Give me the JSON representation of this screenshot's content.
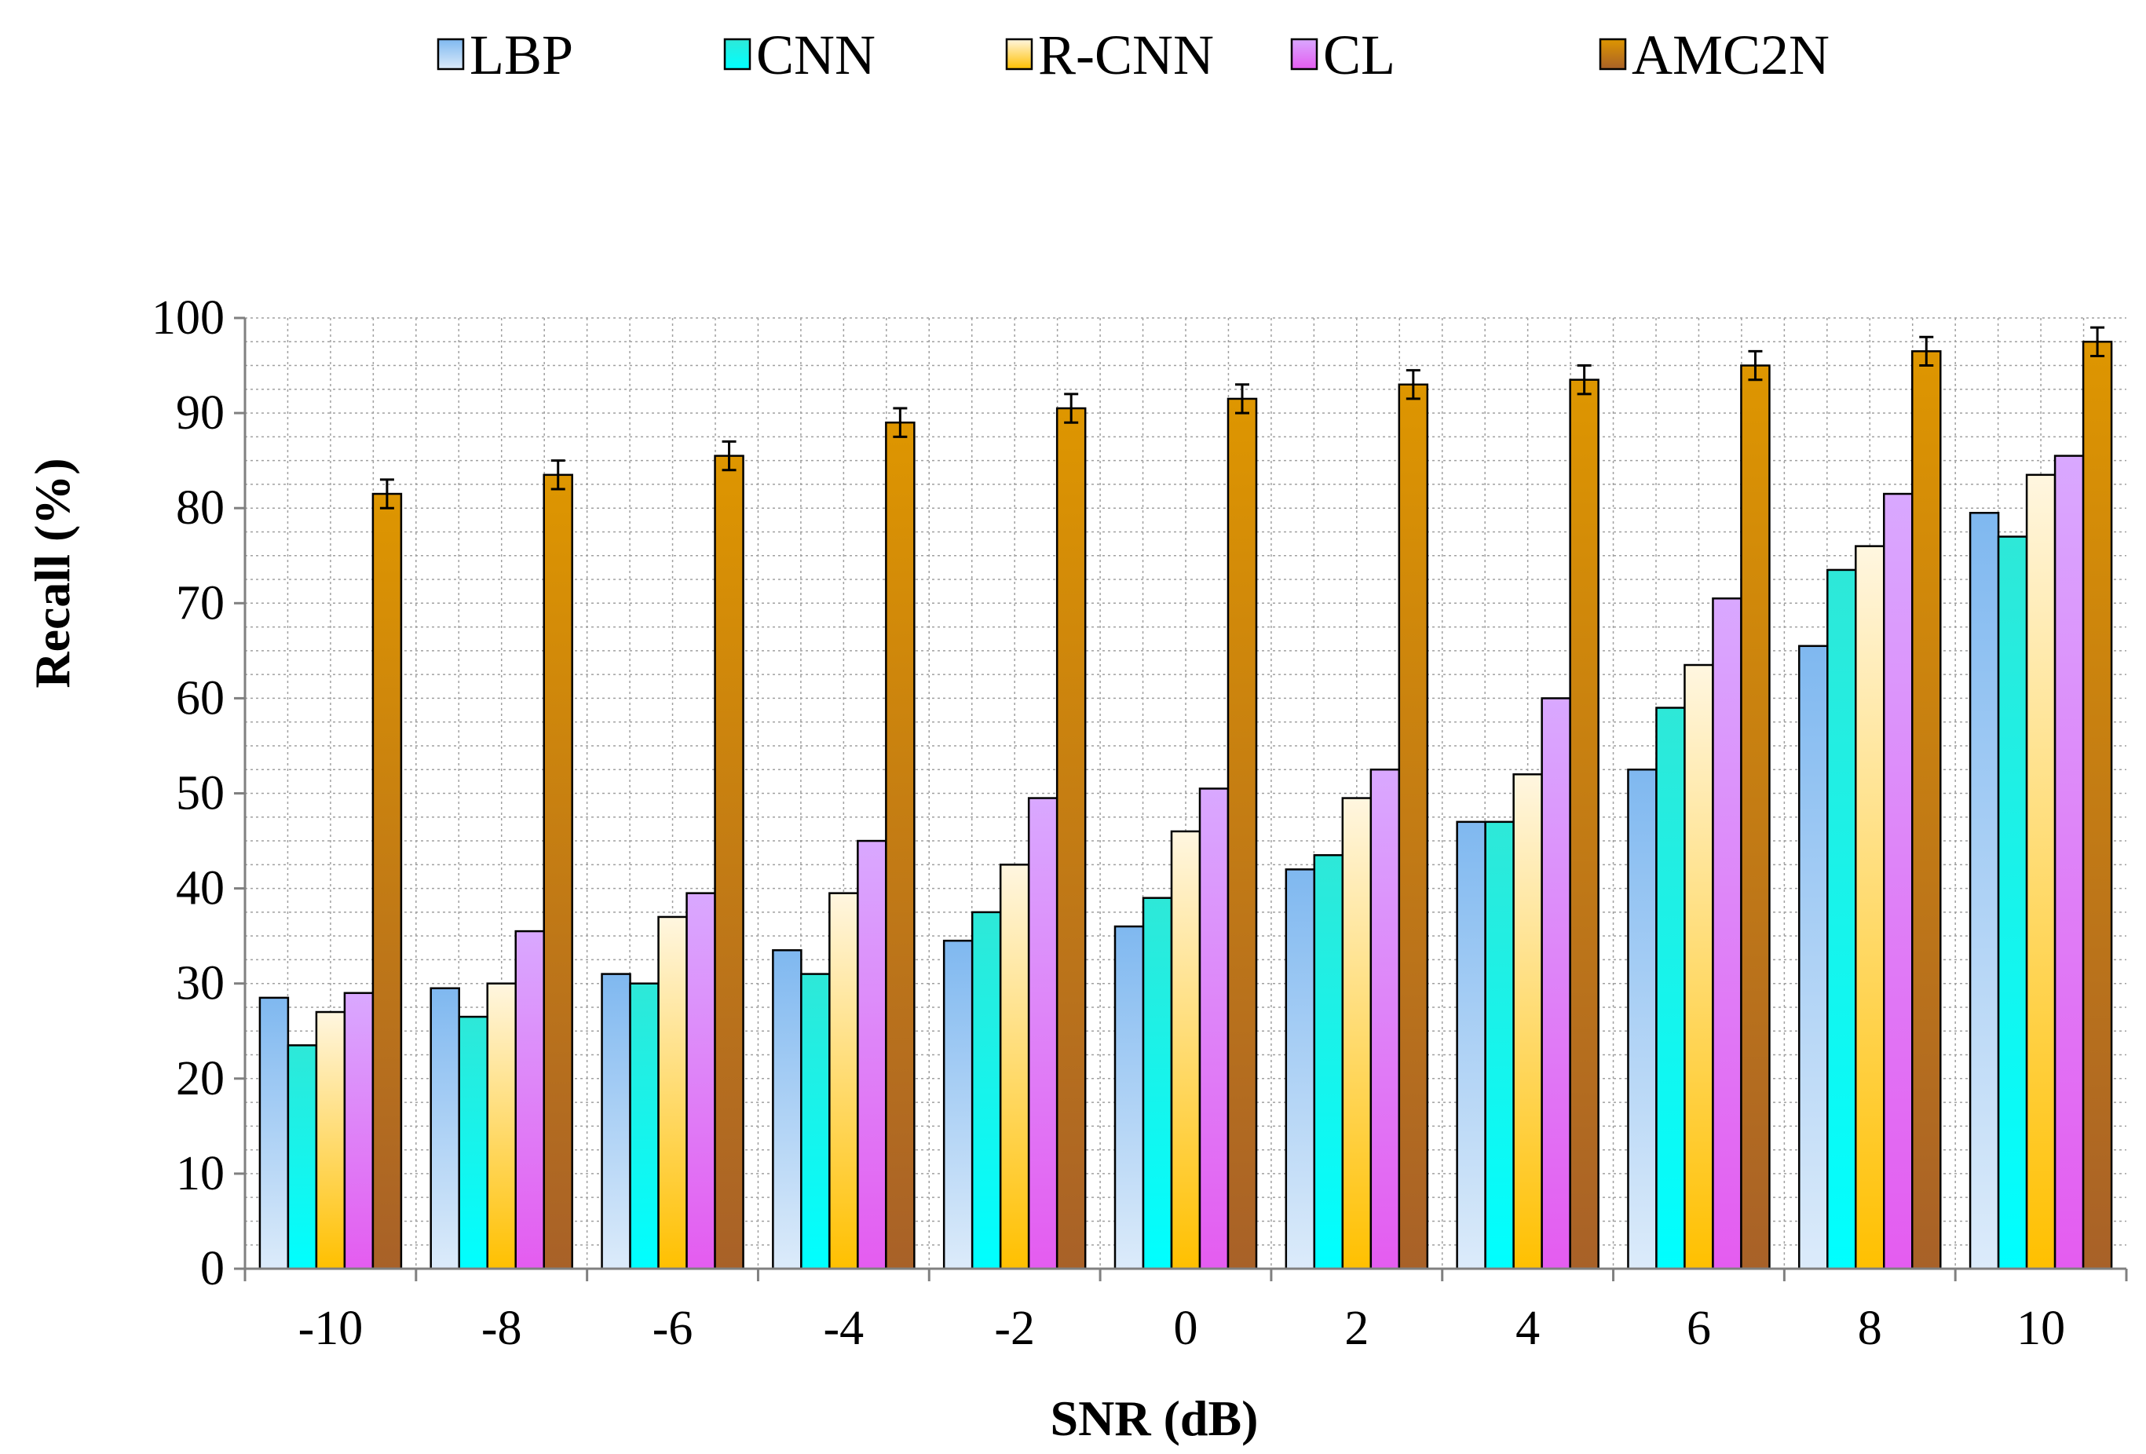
{
  "chart_data": {
    "type": "bar",
    "title": "",
    "xlabel": "SNR (dB)",
    "ylabel": "Recall (%)",
    "ylim": [
      0,
      100
    ],
    "yticks": [
      "0",
      "10",
      "20",
      "30",
      "40",
      "50",
      "60",
      "70",
      "80",
      "90",
      "100"
    ],
    "grid": true,
    "legend_position": "top",
    "categories": [
      "-10",
      "-8",
      "-6",
      "-4",
      "-2",
      "0",
      "2",
      "4",
      "6",
      "8",
      "10"
    ],
    "series": [
      {
        "name": "LBP",
        "color_top": "#7fb8f0",
        "color_bottom": "#dcebfa",
        "values": [
          28.5,
          29.5,
          31,
          33.5,
          34.5,
          36,
          42,
          47,
          52.5,
          65.5,
          79.5
        ]
      },
      {
        "name": "CNN",
        "color_top": "#2ee8d8",
        "color_bottom": "#00ffff",
        "values": [
          23.5,
          26.5,
          30,
          31,
          37.5,
          39,
          43.5,
          47,
          59,
          73.5,
          77
        ]
      },
      {
        "name": "R-CNN",
        "color_top": "#fff6e0",
        "color_bottom": "#ffc000",
        "values": [
          27,
          30,
          37,
          39.5,
          42.5,
          46,
          49.5,
          52,
          63.5,
          76,
          83.5
        ]
      },
      {
        "name": "CL",
        "color_top": "#d9a8ff",
        "color_bottom": "#e45cf0",
        "values": [
          29,
          35.5,
          39.5,
          45,
          49.5,
          50.5,
          52.5,
          60,
          70.5,
          81.5,
          85.5
        ]
      },
      {
        "name": "AMC2N",
        "color_top": "#de9600",
        "color_bottom": "#a86128",
        "values": [
          81.5,
          83.5,
          85.5,
          89,
          90.5,
          91.5,
          93,
          93.5,
          95,
          96.5,
          97.5
        ],
        "error": [
          1.5,
          1.5,
          1.5,
          1.5,
          1.5,
          1.5,
          1.5,
          1.5,
          1.5,
          1.5,
          1.5
        ]
      }
    ]
  }
}
